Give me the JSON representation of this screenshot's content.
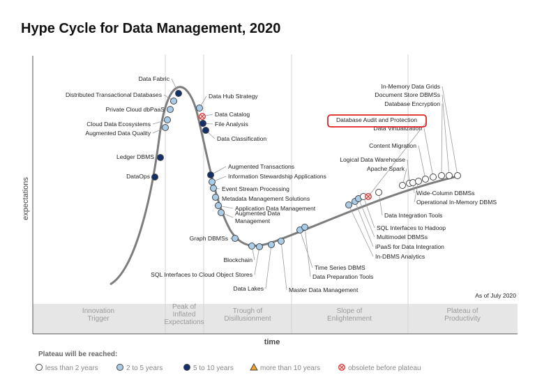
{
  "chart_data": {
    "type": "scatter",
    "title": "Hype Cycle for Data Management, 2020",
    "xlabel": "time",
    "ylabel": "expectations",
    "note": "As of July 2020",
    "phases": [
      "Innovation Trigger",
      "Peak of Inflated Expectations",
      "Trough of Disillusionment",
      "Slope of Enlightenment",
      "Plateau of Productivity"
    ],
    "legend_title": "Plateau will be reached:",
    "legend": [
      {
        "key": "lt2",
        "label": "less than 2 years",
        "color": "#ffffff",
        "shape": "circle"
      },
      {
        "key": "2to5",
        "label": "2 to 5 years",
        "color": "#a9cce8",
        "shape": "circle"
      },
      {
        "key": "5to10",
        "label": "5 to 10 years",
        "color": "#14306b",
        "shape": "circle"
      },
      {
        "key": "gt10",
        "label": "more than 10 years",
        "color": "#f3a427",
        "shape": "triangle"
      },
      {
        "key": "obsolete",
        "label": "obsolete before plateau",
        "color": "#e03a3a",
        "shape": "xcircle"
      }
    ],
    "highlight": "Database Audit and Protection",
    "technologies": [
      {
        "name": "DataOps",
        "category": "5to10",
        "phase": "Innovation Trigger"
      },
      {
        "name": "Ledger DBMS",
        "category": "5to10",
        "phase": "Innovation Trigger"
      },
      {
        "name": "Augmented Data Quality",
        "category": "2to5",
        "phase": "Innovation Trigger"
      },
      {
        "name": "Cloud Data Ecosystems",
        "category": "2to5",
        "phase": "Innovation Trigger"
      },
      {
        "name": "Private Cloud dbPaaS",
        "category": "2to5",
        "phase": "Peak of Inflated Expectations"
      },
      {
        "name": "Distributed Transactional Databases",
        "category": "2to5",
        "phase": "Peak of Inflated Expectations"
      },
      {
        "name": "Data Fabric",
        "category": "5to10",
        "phase": "Peak of Inflated Expectations"
      },
      {
        "name": "Data Hub Strategy",
        "category": "2to5",
        "phase": "Peak of Inflated Expectations"
      },
      {
        "name": "Data Catalog",
        "category": "obsolete",
        "phase": "Peak of Inflated Expectations"
      },
      {
        "name": "File Analysis",
        "category": "5to10",
        "phase": "Peak of Inflated Expectations"
      },
      {
        "name": "Data Classification",
        "category": "5to10",
        "phase": "Trough of Disillusionment"
      },
      {
        "name": "Augmented Transactions",
        "category": "5to10",
        "phase": "Trough of Disillusionment"
      },
      {
        "name": "Information Stewardship Applications",
        "category": "2to5",
        "phase": "Trough of Disillusionment"
      },
      {
        "name": "Event Stream Processing",
        "category": "2to5",
        "phase": "Trough of Disillusionment"
      },
      {
        "name": "Metadata Management Solutions",
        "category": "2to5",
        "phase": "Trough of Disillusionment"
      },
      {
        "name": "Application Data Management",
        "category": "2to5",
        "phase": "Trough of Disillusionment"
      },
      {
        "name": "Augmented Data Management",
        "category": "2to5",
        "phase": "Trough of Disillusionment"
      },
      {
        "name": "Graph DBMSs",
        "category": "2to5",
        "phase": "Trough of Disillusionment"
      },
      {
        "name": "Blockchain",
        "category": "2to5",
        "phase": "Trough of Disillusionment"
      },
      {
        "name": "SQL Interfaces to Cloud Object Stores",
        "category": "2to5",
        "phase": "Trough of Disillusionment"
      },
      {
        "name": "Data Lakes",
        "category": "2to5",
        "phase": "Trough of Disillusionment"
      },
      {
        "name": "Master Data Management",
        "category": "2to5",
        "phase": "Trough of Disillusionment"
      },
      {
        "name": "Time Series DBMS",
        "category": "2to5",
        "phase": "Slope of Enlightenment"
      },
      {
        "name": "Data Preparation Tools",
        "category": "2to5",
        "phase": "Slope of Enlightenment"
      },
      {
        "name": "In-DBMS Analytics",
        "category": "2to5",
        "phase": "Slope of Enlightenment"
      },
      {
        "name": "iPaaS for Data Integration",
        "category": "2to5",
        "phase": "Slope of Enlightenment"
      },
      {
        "name": "Multimodel DBMSs",
        "category": "2to5",
        "phase": "Slope of Enlightenment"
      },
      {
        "name": "SQL Interfaces to Hadoop",
        "category": "lt2",
        "phase": "Slope of Enlightenment"
      },
      {
        "name": "Database Audit and Protection",
        "category": "obsolete",
        "phase": "Slope of Enlightenment"
      },
      {
        "name": "Data Integration Tools",
        "category": "lt2",
        "phase": "Slope of Enlightenment"
      },
      {
        "name": "Apache Spark",
        "category": "lt2",
        "phase": "Slope of Enlightenment"
      },
      {
        "name": "Logical Data Warehouse",
        "category": "lt2",
        "phase": "Slope of Enlightenment"
      },
      {
        "name": "Wide-Column DBMSs",
        "category": "lt2",
        "phase": "Slope of Enlightenment"
      },
      {
        "name": "Operational In-Memory DBMS",
        "category": "lt2",
        "phase": "Slope of Enlightenment"
      },
      {
        "name": "Content Migration",
        "category": "lt2",
        "phase": "Plateau of Productivity"
      },
      {
        "name": "Data Virtualization",
        "category": "lt2",
        "phase": "Plateau of Productivity"
      },
      {
        "name": "Database Encryption",
        "category": "lt2",
        "phase": "Plateau of Productivity"
      },
      {
        "name": "Document Store DBMSs",
        "category": "lt2",
        "phase": "Plateau of Productivity"
      },
      {
        "name": "In-Memory Data Grids",
        "category": "lt2",
        "phase": "Plateau of Productivity"
      }
    ]
  }
}
